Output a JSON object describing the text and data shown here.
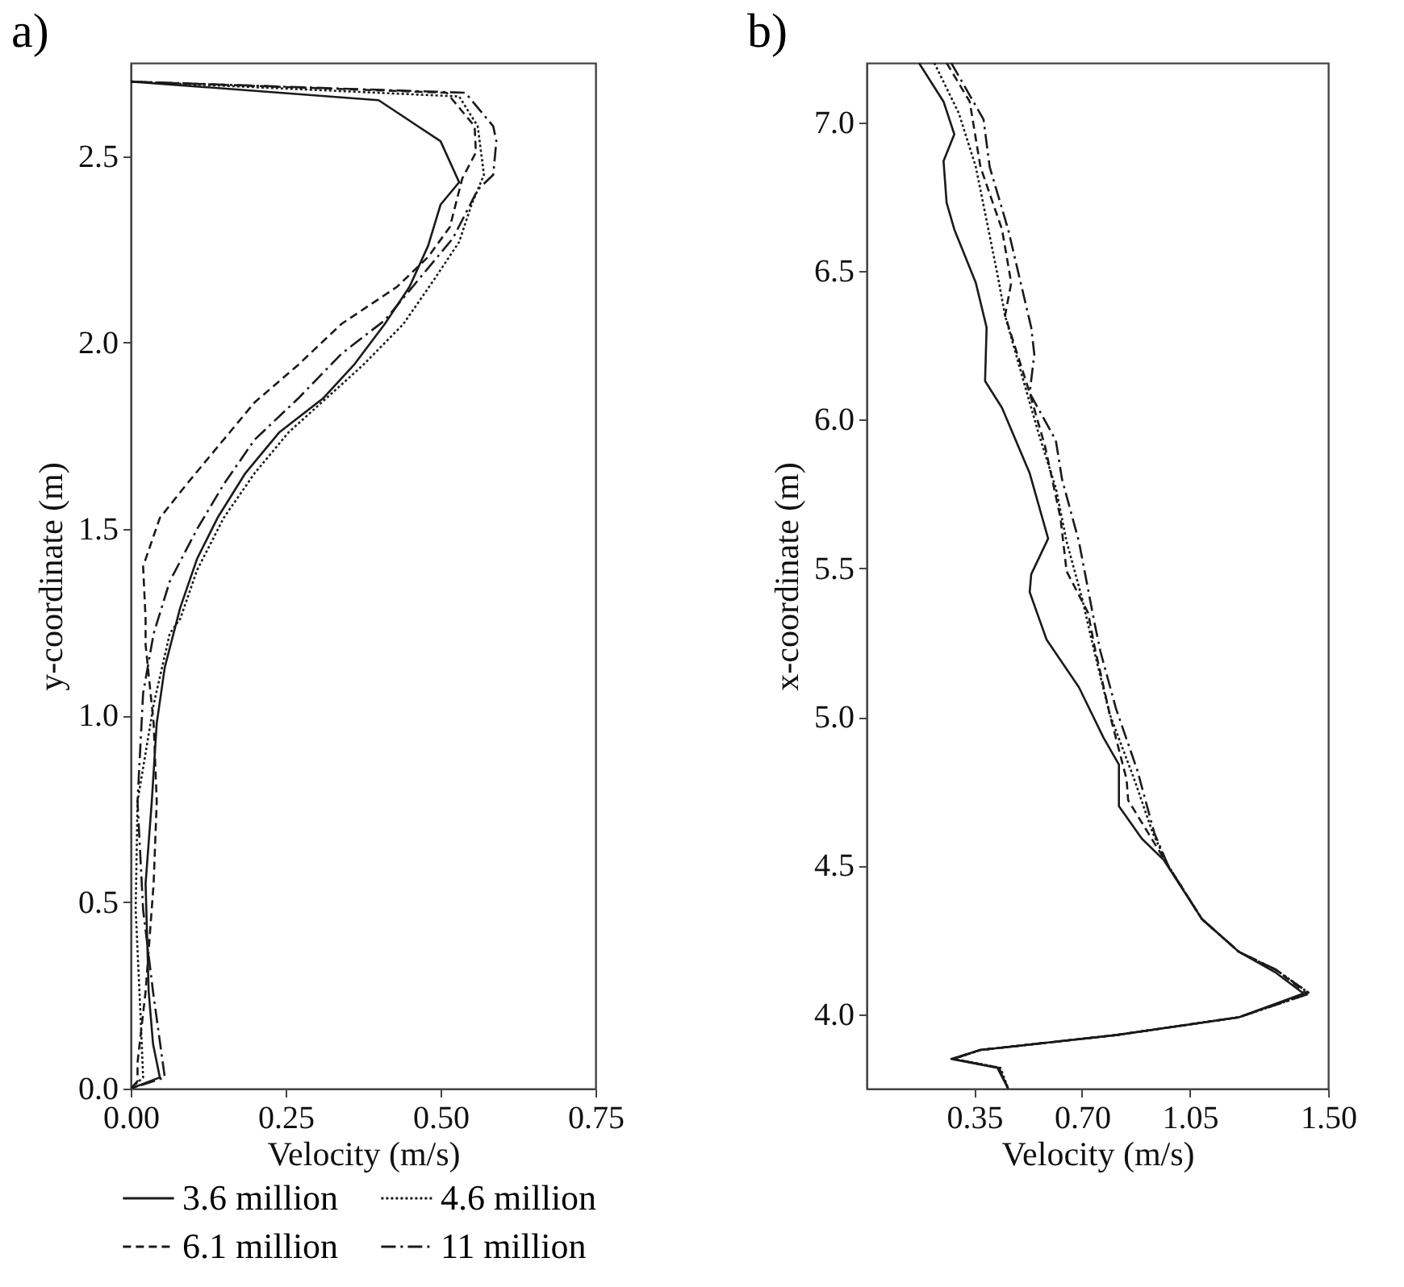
{
  "chart_data": [
    {
      "type": "line",
      "title": "a)",
      "xlabel": "Velocity (m/s)",
      "ylabel": "y-coordinate (m)",
      "xlim": [
        0,
        0.75
      ],
      "ylim": [
        0,
        2.75
      ],
      "xticks": [
        {
          "value": 0,
          "label": "0.00"
        },
        0.25,
        {
          "value": 0.5,
          "label": "0.50"
        },
        0.75
      ],
      "yticks": [
        {
          "value": 0,
          "label": "0.0"
        },
        0.5,
        {
          "value": 1,
          "label": "1.0"
        },
        1.5,
        {
          "value": 2,
          "label": "2.0"
        },
        2.5
      ],
      "grid": false,
      "legend": "bottom",
      "series": [
        {
          "name": "3.6 million",
          "color": "#1a1a1a",
          "line_style": "solid",
          "x": [
            0,
            0.4,
            0.5,
            0.53,
            0.5,
            0.48,
            0.45,
            0.41,
            0.36,
            0.31,
            0.24,
            0.185,
            0.14,
            0.107,
            0.08,
            0.055,
            0.042,
            0.034,
            0.024,
            0.029,
            0.036,
            0.047,
            0
          ],
          "values": [
            2.7,
            2.65,
            2.54,
            2.43,
            2.37,
            2.26,
            2.15,
            2.05,
            1.94,
            1.85,
            1.76,
            1.65,
            1.53,
            1.42,
            1.29,
            1.13,
            0.98,
            0.77,
            0.55,
            0.26,
            0.12,
            0.03,
            0
          ]
        },
        {
          "name": "4.6 million",
          "color": "#1a1a1a",
          "line_style": "dotted",
          "x": [
            0,
            0.53,
            0.56,
            0.57,
            0.55,
            0.53,
            0.49,
            0.44,
            0.375,
            0.255,
            0.2,
            0.15,
            0.107,
            0.08,
            0.063,
            0.037,
            0.011,
            0.008,
            0.016,
            0.02,
            0
          ],
          "values": [
            2.7,
            2.66,
            2.58,
            2.45,
            2.37,
            2.27,
            2.17,
            2.05,
            1.94,
            1.76,
            1.65,
            1.53,
            1.39,
            1.26,
            1.22,
            1.03,
            0.77,
            0.48,
            0.19,
            0.03,
            0
          ]
        },
        {
          "name": "6.1 million",
          "color": "#1a1a1a",
          "line_style": "dashed",
          "x": [
            0,
            0.51,
            0.555,
            0.557,
            0.535,
            0.515,
            0.48,
            0.43,
            0.34,
            0.27,
            0.2,
            0.14,
            0.09,
            0.047,
            0.02,
            0.024,
            0.024,
            0.037,
            0.042,
            0.037,
            0.024,
            0.011,
            0.011,
            0
          ],
          "values": [
            2.7,
            2.67,
            2.58,
            2.51,
            2.44,
            2.31,
            2.23,
            2.15,
            2.05,
            1.94,
            1.84,
            1.72,
            1.62,
            1.53,
            1.4,
            1.26,
            1.19,
            0.98,
            0.77,
            0.55,
            0.26,
            0.07,
            0.02,
            0
          ]
        },
        {
          "name": "11 million",
          "color": "#1a1a1a",
          "line_style": "dashdot",
          "x": [
            0,
            0.54,
            0.585,
            0.59,
            0.585,
            0.56,
            0.52,
            0.47,
            0.41,
            0.34,
            0.27,
            0.2,
            0.15,
            0.107,
            0.063,
            0.037,
            0.02,
            0.011,
            0.02,
            0.036,
            0.055,
            0
          ],
          "values": [
            2.7,
            2.67,
            2.58,
            2.54,
            2.45,
            2.41,
            2.28,
            2.18,
            2.06,
            1.97,
            1.85,
            1.74,
            1.62,
            1.5,
            1.36,
            1.22,
            1.06,
            0.77,
            0.48,
            0.26,
            0.03,
            0
          ]
        }
      ]
    },
    {
      "type": "line",
      "title": "b)",
      "xlabel": "Velocity (m/s)",
      "ylabel": "x-coordinate (m)",
      "xlim": [
        0,
        1.5
      ],
      "ylim": [
        3.75,
        7.2
      ],
      "xticks": [
        0.35,
        {
          "value": 0.7,
          "label": "0.70"
        },
        1.05,
        {
          "value": 1.5,
          "label": "1.50"
        }
      ],
      "yticks": [
        {
          "value": 4,
          "label": "4.0"
        },
        4.5,
        {
          "value": 5,
          "label": "5.0"
        },
        5.5,
        {
          "value": 6,
          "label": "6.0"
        },
        6.5,
        {
          "value": 7,
          "label": "7.0"
        }
      ],
      "grid": false,
      "series": [
        {
          "color": "#1a1a1a",
          "line_style": "solid",
          "x": [
            0.17,
            0.25,
            0.285,
            0.25,
            0.26,
            0.285,
            0.355,
            0.39,
            0.385,
            0.44,
            0.53,
            0.59,
            0.535,
            0.53,
            0.585,
            0.69,
            0.77,
            0.82,
            0.82,
            0.895,
            0.965,
            1.09,
            1.21,
            1.33,
            1.42,
            1.21,
            0.81,
            0.37,
            0.275,
            0.425,
            0.46
          ],
          "values": [
            7.2,
            7.07,
            6.96,
            6.87,
            6.73,
            6.64,
            6.46,
            6.31,
            6.13,
            6.04,
            5.82,
            5.6,
            5.48,
            5.42,
            5.26,
            5.1,
            4.93,
            4.84,
            4.7,
            4.59,
            4.52,
            4.32,
            4.21,
            4.14,
            4.07,
            3.99,
            3.93,
            3.88,
            3.85,
            3.82,
            3.75
          ]
        },
        {
          "color": "#1a1a1a",
          "line_style": "dotted",
          "x": [
            0.22,
            0.3,
            0.355,
            0.39,
            0.425,
            0.45,
            0.51,
            0.56,
            0.615,
            0.65,
            0.7,
            0.74,
            0.79,
            0.87,
            0.93,
            0.98,
            1.09,
            1.21,
            1.33,
            1.44,
            1.21,
            0.81,
            0.37,
            0.285,
            0.435,
            0.46
          ],
          "values": [
            7.2,
            7.03,
            6.85,
            6.67,
            6.49,
            6.35,
            6.13,
            5.95,
            5.77,
            5.59,
            5.4,
            5.22,
            5.01,
            4.79,
            4.61,
            4.5,
            4.32,
            4.21,
            4.15,
            4.07,
            3.99,
            3.93,
            3.88,
            3.85,
            3.82,
            3.75
          ]
        },
        {
          "color": "#1a1a1a",
          "line_style": "dashed",
          "x": [
            0.26,
            0.335,
            0.37,
            0.44,
            0.47,
            0.45,
            0.53,
            0.58,
            0.63,
            0.65,
            0.72,
            0.74,
            0.79,
            0.845,
            0.85,
            0.915,
            0.98,
            1.09,
            1.21,
            1.33,
            1.43,
            1.21,
            0.81,
            0.37,
            0.28,
            0.43,
            0.46
          ],
          "values": [
            7.2,
            7.07,
            6.85,
            6.64,
            6.46,
            6.35,
            6.09,
            5.91,
            5.67,
            5.49,
            5.35,
            5.24,
            5.01,
            4.79,
            4.72,
            4.61,
            4.5,
            4.32,
            4.21,
            4.15,
            4.07,
            3.99,
            3.93,
            3.88,
            3.85,
            3.82,
            3.75
          ]
        },
        {
          "color": "#1a1a1a",
          "line_style": "dashdot",
          "x": [
            0.275,
            0.38,
            0.4,
            0.46,
            0.535,
            0.545,
            0.53,
            0.615,
            0.635,
            0.69,
            0.74,
            0.76,
            0.81,
            0.88,
            0.935,
            0.98,
            1.09,
            1.21,
            1.33,
            1.44,
            1.21,
            0.81,
            0.37,
            0.28,
            0.43,
            0.46
          ],
          "values": [
            7.2,
            7.01,
            6.85,
            6.64,
            6.31,
            6.22,
            6.09,
            5.93,
            5.8,
            5.59,
            5.32,
            5.22,
            5.03,
            4.82,
            4.61,
            4.5,
            4.32,
            4.21,
            4.15,
            4.07,
            3.99,
            3.93,
            3.88,
            3.85,
            3.82,
            3.75
          ]
        }
      ]
    }
  ]
}
